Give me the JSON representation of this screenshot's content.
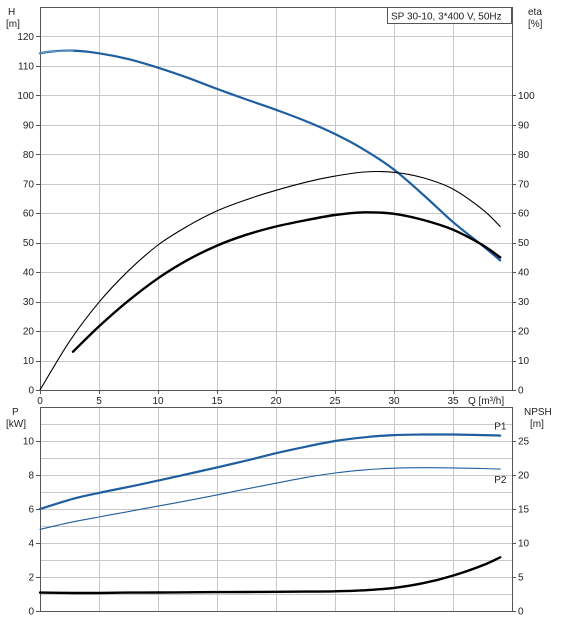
{
  "chart_data": [
    {
      "type": "line",
      "title": "SP 30-10, 3*400 V, 50Hz",
      "xlabel": "Q [m³/h]",
      "ylabel_left_name": "H",
      "ylabel_left_unit": "[m]",
      "ylabel_right_name": "eta",
      "ylabel_right_unit": "[%]",
      "xlim": [
        0,
        40
      ],
      "ylim_left": [
        0,
        130
      ],
      "ylim_right": [
        0,
        130
      ],
      "grid": true,
      "x_ticks": [
        "0",
        "5",
        "10",
        "15",
        "20",
        "25",
        "30",
        "35"
      ],
      "y_left_ticks": [
        "0",
        "10",
        "20",
        "30",
        "40",
        "50",
        "60",
        "70",
        "80",
        "90",
        "100",
        "110",
        "120"
      ],
      "y_right_ticks": [
        "0",
        "10",
        "20",
        "30",
        "40",
        "50",
        "60",
        "70",
        "80",
        "90",
        "100"
      ],
      "series": [
        {
          "axis": "left",
          "color": "#1f5fa0",
          "points": [
            [
              0,
              114.3
            ],
            [
              1,
              114.9
            ],
            [
              2.8,
              115.2
            ],
            [
              5,
              114.3
            ],
            [
              7.5,
              112.3
            ],
            [
              10,
              109.4
            ],
            [
              12.5,
              106.0
            ],
            [
              15,
              102.2
            ],
            [
              17.5,
              98.6
            ],
            [
              20,
              95.1
            ],
            [
              22.5,
              91.3
            ],
            [
              25,
              86.9
            ],
            [
              27.5,
              81.5
            ],
            [
              30,
              74.8
            ],
            [
              32.5,
              66.2
            ],
            [
              35,
              57.0
            ],
            [
              37.5,
              49.0
            ],
            [
              39,
              44.0
            ]
          ]
        },
        {
          "axis": "right",
          "color": "#000000",
          "points": [
            [
              0,
              0
            ],
            [
              2.5,
              16.5
            ],
            [
              5,
              29.8
            ],
            [
              7.5,
              40.5
            ],
            [
              10,
              49.2
            ],
            [
              12.5,
              55.6
            ],
            [
              15,
              60.8
            ],
            [
              17.5,
              64.6
            ],
            [
              20,
              67.8
            ],
            [
              22.5,
              70.5
            ],
            [
              25,
              72.6
            ],
            [
              27.5,
              74.0
            ],
            [
              30,
              73.9
            ],
            [
              32.5,
              72.0
            ],
            [
              35,
              68.2
            ],
            [
              37.5,
              61.3
            ],
            [
              39,
              55.5
            ]
          ]
        },
        {
          "axis": "right",
          "color": "#000000",
          "points": [
            [
              2.8,
              13.0
            ],
            [
              5,
              21.6
            ],
            [
              7.5,
              30.3
            ],
            [
              10,
              37.9
            ],
            [
              12.5,
              44.1
            ],
            [
              15,
              49.0
            ],
            [
              17.5,
              52.7
            ],
            [
              20,
              55.5
            ],
            [
              22.5,
              57.6
            ],
            [
              25,
              59.4
            ],
            [
              27.5,
              60.3
            ],
            [
              30,
              59.8
            ],
            [
              32.5,
              57.7
            ],
            [
              35,
              54.4
            ],
            [
              37.5,
              49.2
            ],
            [
              39,
              45.0
            ]
          ]
        }
      ]
    },
    {
      "type": "line",
      "xlabel": "",
      "ylabel_left_name": "P",
      "ylabel_left_unit": "[kW]",
      "ylabel_right_name": "NPSH",
      "ylabel_right_unit": "[m]",
      "xlim": [
        0,
        40
      ],
      "ylim_left": [
        0,
        12
      ],
      "ylim_right": [
        0,
        30
      ],
      "grid": true,
      "y_left_ticks": [
        "0",
        "2",
        "4",
        "6",
        "8",
        "10"
      ],
      "y_right_ticks": [
        "0",
        "5",
        "10",
        "15",
        "20",
        "25"
      ],
      "series": [
        {
          "name": "P1",
          "axis": "left",
          "color": "#1f5fa0",
          "points": [
            [
              0,
              6.0
            ],
            [
              2.8,
              6.6
            ],
            [
              5,
              6.95
            ],
            [
              7.5,
              7.3
            ],
            [
              10,
              7.67
            ],
            [
              12.5,
              8.05
            ],
            [
              15,
              8.45
            ],
            [
              17.5,
              8.85
            ],
            [
              20,
              9.28
            ],
            [
              22.5,
              9.66
            ],
            [
              25,
              10.0
            ],
            [
              27.5,
              10.22
            ],
            [
              30,
              10.35
            ],
            [
              32.5,
              10.38
            ],
            [
              35,
              10.38
            ],
            [
              37.5,
              10.35
            ],
            [
              39,
              10.32
            ]
          ]
        },
        {
          "name": "P2",
          "axis": "left",
          "color": "#1f5fa0",
          "points": [
            [
              0,
              4.8
            ],
            [
              2.5,
              5.2
            ],
            [
              5,
              5.53
            ],
            [
              7.5,
              5.85
            ],
            [
              10,
              6.17
            ],
            [
              12.5,
              6.49
            ],
            [
              15,
              6.83
            ],
            [
              17.5,
              7.18
            ],
            [
              20,
              7.52
            ],
            [
              22.5,
              7.85
            ],
            [
              25,
              8.12
            ],
            [
              27.5,
              8.3
            ],
            [
              30,
              8.4
            ],
            [
              32.5,
              8.43
            ],
            [
              35,
              8.42
            ],
            [
              37.5,
              8.38
            ],
            [
              39,
              8.35
            ]
          ]
        },
        {
          "axis": "right",
          "color": "#000000",
          "points": [
            [
              0,
              2.7
            ],
            [
              2.8,
              2.65
            ],
            [
              5,
              2.65
            ],
            [
              7.5,
              2.7
            ],
            [
              10,
              2.72
            ],
            [
              12.5,
              2.75
            ],
            [
              15,
              2.78
            ],
            [
              17.5,
              2.8
            ],
            [
              20,
              2.82
            ],
            [
              22.5,
              2.85
            ],
            [
              25,
              2.9
            ],
            [
              27.5,
              3.05
            ],
            [
              30,
              3.4
            ],
            [
              32.5,
              4.1
            ],
            [
              35,
              5.2
            ],
            [
              37.5,
              6.7
            ],
            [
              39,
              7.9
            ]
          ]
        }
      ]
    }
  ]
}
